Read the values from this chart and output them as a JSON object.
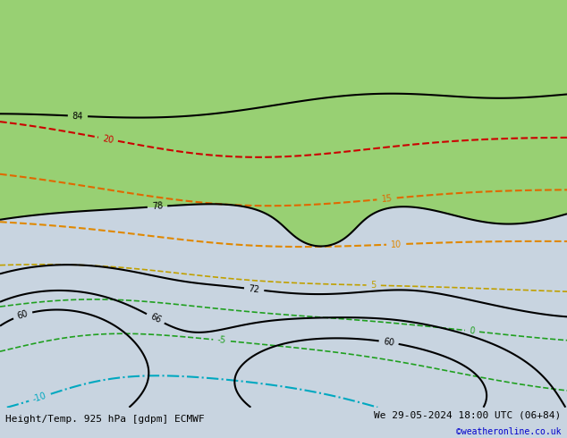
{
  "title_left": "Height/Temp. 925 hPa [gdpm] ECMWF",
  "title_right": "We 29-05-2024 18:00 UTC (06+84)",
  "copyright": "©weatheronline.co.uk",
  "background_color": "#c8d4e0",
  "ocean_color": "#c8d4e0",
  "land_color": "#b8c8a0",
  "highlight_green": "#90d060",
  "fig_width": 6.34,
  "fig_height": 4.9,
  "dpi": 100,
  "lon_min": 100,
  "lon_max": 185,
  "lat_min": -55,
  "lat_max": 5,
  "font_size_title": 8,
  "font_size_copyright": 7,
  "font_size_clabel": 7
}
